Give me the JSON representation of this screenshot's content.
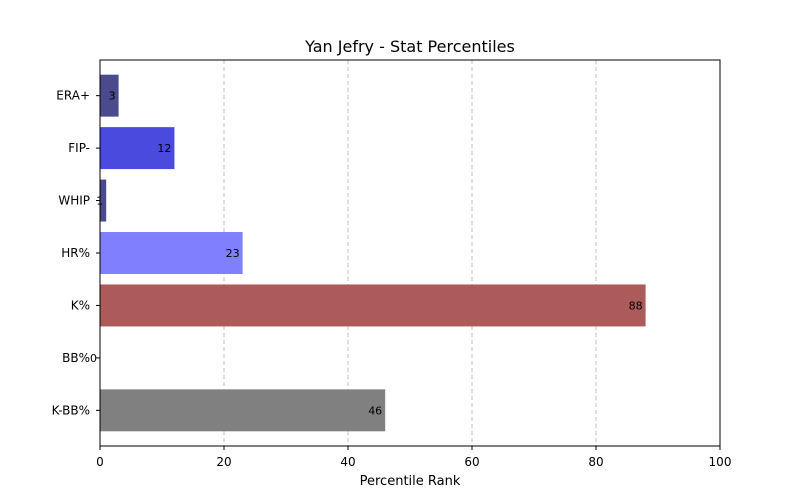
{
  "chart_data": {
    "type": "bar",
    "orientation": "horizontal",
    "title": "Yan Jefry - Stat Percentiles",
    "xlabel": "Percentile Rank",
    "ylabel": "",
    "xlim": [
      0,
      100
    ],
    "xticks": [
      0,
      20,
      40,
      60,
      80,
      100
    ],
    "grid": "x-dashed",
    "categories": [
      "ERA+",
      "FIP-",
      "WHIP",
      "HR%",
      "K%",
      "BB%",
      "K-BB%"
    ],
    "values": [
      3,
      12,
      1,
      23,
      88,
      0,
      46
    ],
    "data_labels": [
      "3",
      "12",
      "1",
      "23",
      "88",
      "0",
      "46"
    ],
    "colors": [
      "#4a4a8c",
      "#4a4adf",
      "#4a4a8c",
      "#8080ff",
      "#ad5a5a",
      "#4a4a8c",
      "#808080"
    ]
  }
}
